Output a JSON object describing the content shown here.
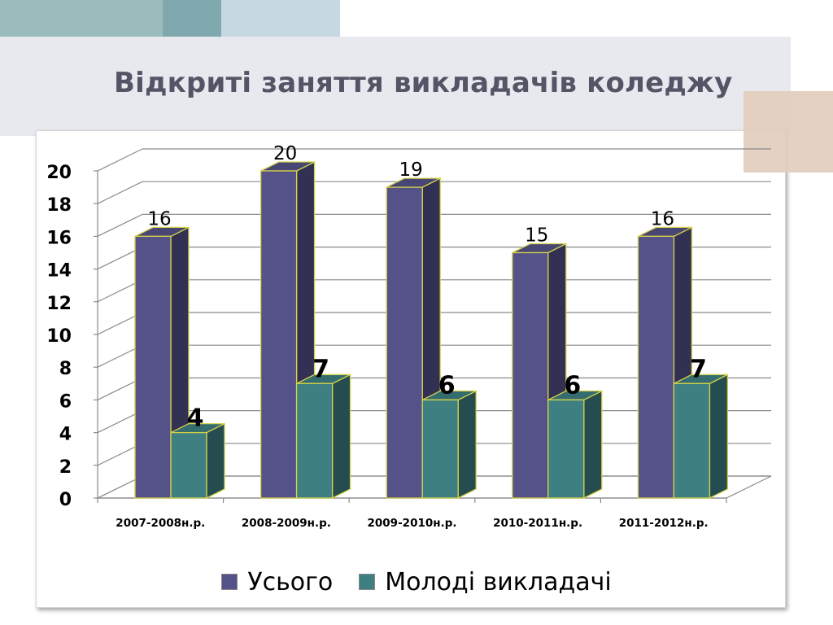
{
  "slide": {
    "title": "Відкриті заняття викладачів коледжу"
  },
  "chart_data": {
    "type": "bar",
    "style": "3d-clustered-column",
    "categories": [
      "2007-2008н.р.",
      "2008-2009н.р.",
      "2009-2010н.р.",
      "2010-2011н.р.",
      "2011-2012н.р."
    ],
    "series": [
      {
        "name": "Усього",
        "values": [
          16,
          20,
          19,
          15,
          16
        ],
        "color": "#55528a"
      },
      {
        "name": "Молоді викладачі",
        "values": [
          4,
          7,
          6,
          6,
          7
        ],
        "color": "#3e7f82"
      }
    ],
    "ylim": [
      0,
      20
    ],
    "yticks": [
      "0",
      "2",
      "4",
      "6",
      "8",
      "10",
      "12",
      "14",
      "16",
      "18",
      "20"
    ],
    "grid": true,
    "legend_position": "bottom",
    "data_labels": true
  }
}
